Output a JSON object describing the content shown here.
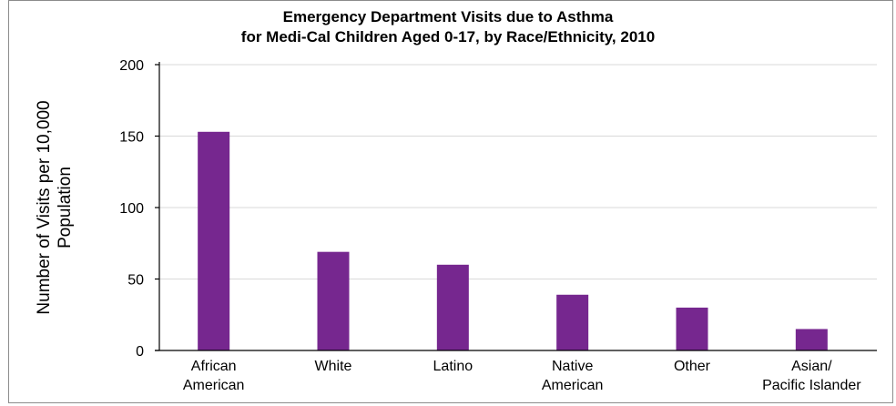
{
  "chart_data": {
    "type": "bar",
    "title": [
      "Emergency Department Visits due to Asthma",
      "for Medi-Cal Children Aged 0-17, by Race/Ethnicity, 2010"
    ],
    "ylabel": [
      "Number of Visits per 10,000",
      "Population"
    ],
    "xlabel": "",
    "categories": [
      [
        "African",
        "American"
      ],
      [
        "White"
      ],
      [
        "Latino"
      ],
      [
        "Native",
        "American"
      ],
      [
        "Other"
      ],
      [
        "Asian/",
        "Pacific Islander"
      ]
    ],
    "values": [
      153,
      69,
      60,
      39,
      30,
      15
    ],
    "ylim": [
      0,
      200
    ],
    "yticks": [
      0,
      50,
      100,
      150,
      200
    ],
    "grid": true,
    "legend": "none",
    "bar_color": "#76278f"
  }
}
